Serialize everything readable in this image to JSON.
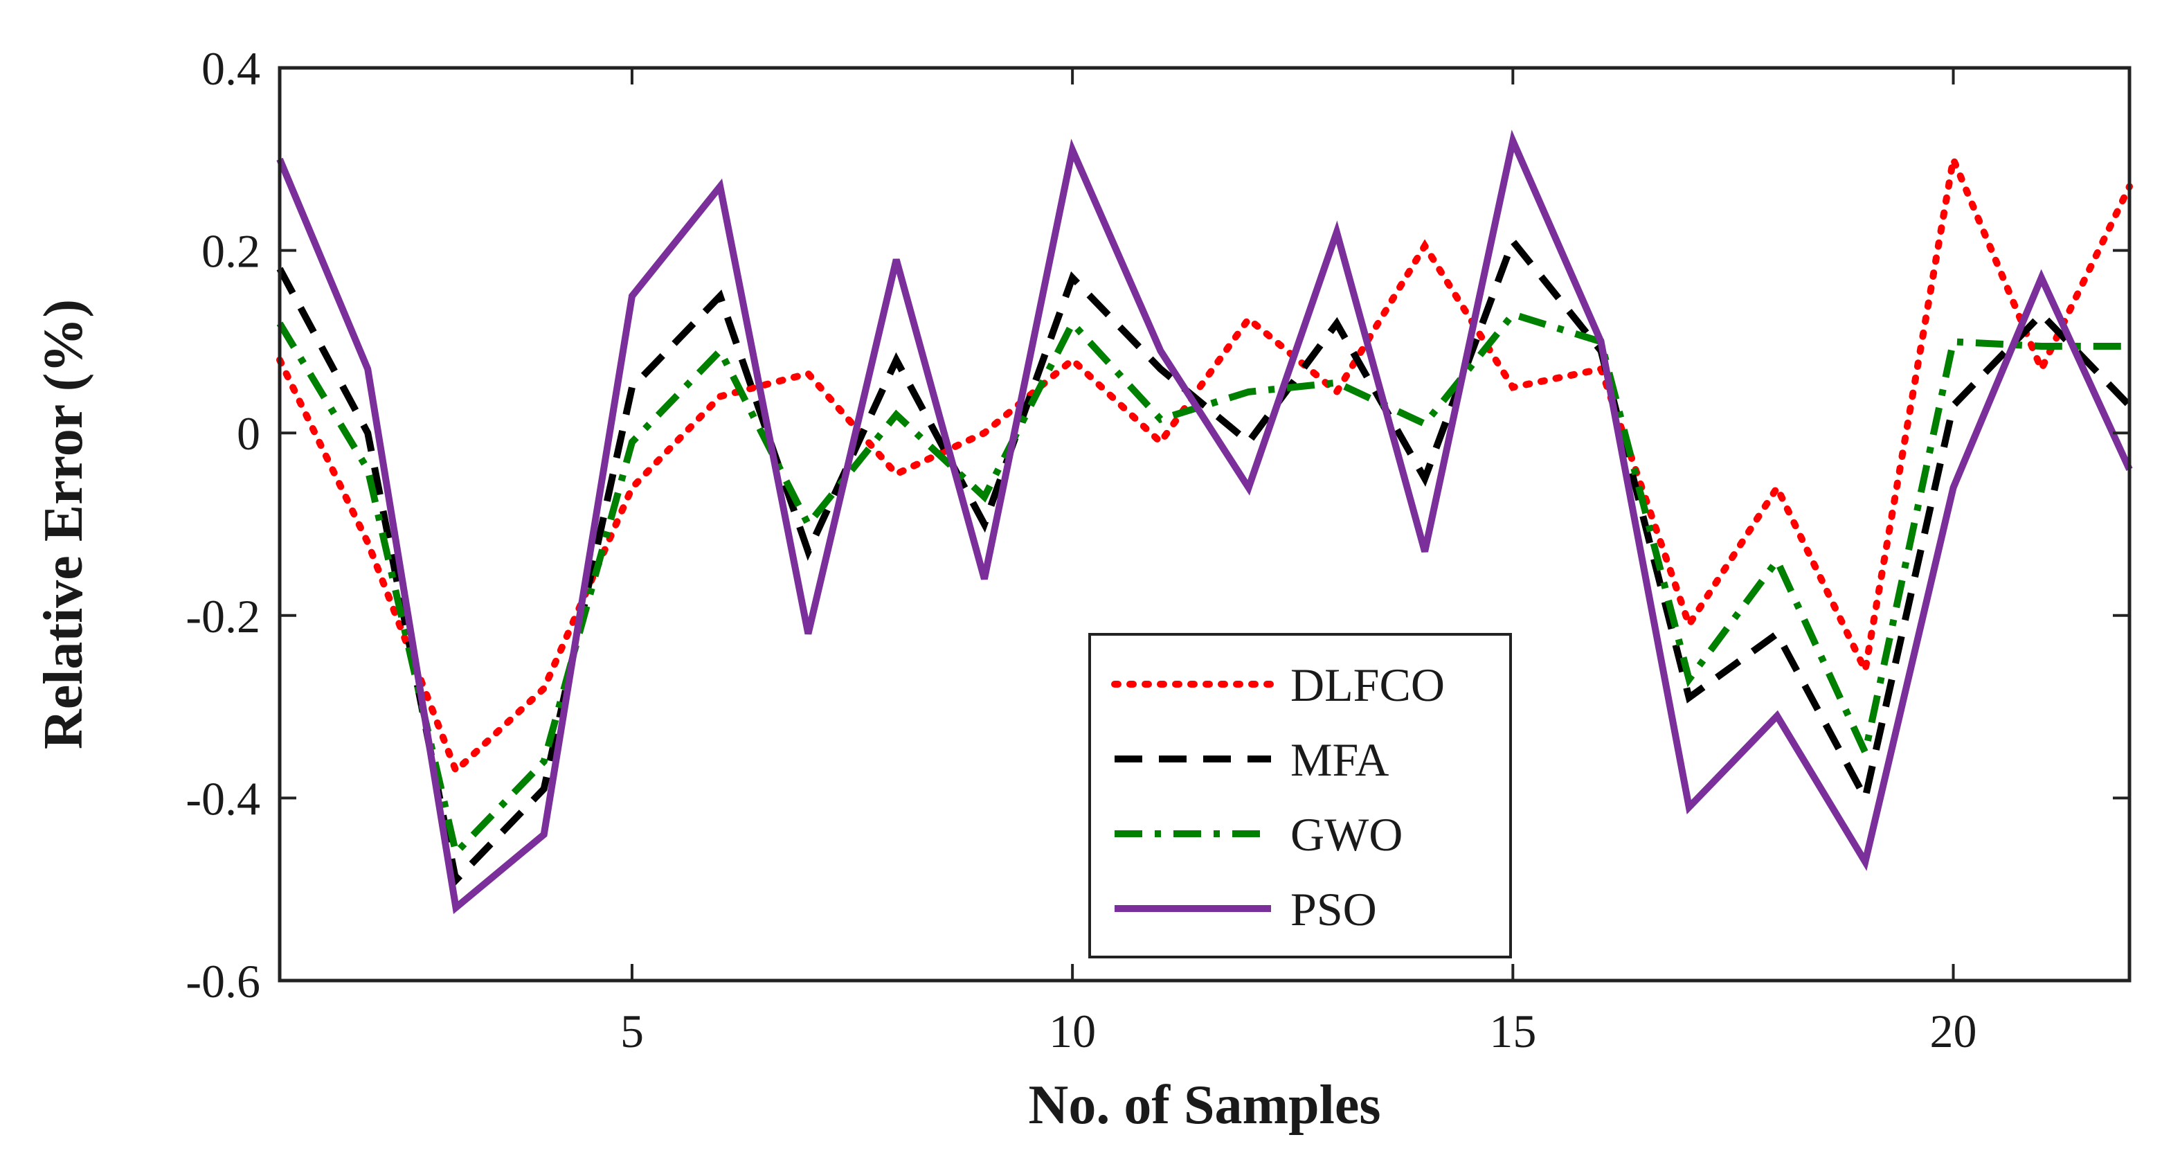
{
  "chart_data": {
    "type": "line",
    "title": "",
    "xlabel": "No. of Samples",
    "ylabel": "Relative Error (%)",
    "xlim": [
      1,
      22
    ],
    "ylim": [
      -0.6,
      0.4
    ],
    "xticks": [
      5,
      10,
      15,
      20
    ],
    "yticks": [
      -0.6,
      -0.4,
      -0.2,
      0,
      0.2,
      0.4
    ],
    "ytick_labels": [
      "-0.6",
      "-0.4",
      "-0.2",
      "0",
      "0.2",
      "0.4"
    ],
    "xtick_labels": [
      "5",
      "10",
      "15",
      "20"
    ],
    "grid": false,
    "legend_position": "bottom-center",
    "x": [
      1,
      2,
      3,
      4,
      5,
      6,
      7,
      8,
      9,
      10,
      11,
      12,
      13,
      14,
      15,
      16,
      17,
      18,
      19,
      20,
      21,
      22
    ],
    "series": [
      {
        "name": "DLFCO",
        "color": "#ff0000",
        "dash": "dotted",
        "values": [
          0.08,
          -0.12,
          -0.37,
          -0.28,
          -0.06,
          0.04,
          0.065,
          -0.045,
          0.0,
          0.08,
          -0.01,
          0.125,
          0.045,
          0.205,
          0.05,
          0.07,
          -0.21,
          -0.06,
          -0.26,
          0.3,
          0.07,
          0.27
        ]
      },
      {
        "name": "MFA",
        "color": "#000000",
        "dash": "dashed",
        "values": [
          0.18,
          0.0,
          -0.49,
          -0.39,
          0.05,
          0.15,
          -0.13,
          0.08,
          -0.1,
          0.17,
          0.07,
          -0.01,
          0.12,
          -0.05,
          0.21,
          0.09,
          -0.29,
          -0.22,
          -0.4,
          0.03,
          0.13,
          0.03
        ]
      },
      {
        "name": "GWO",
        "color": "#008000",
        "dash": "dashdot",
        "values": [
          0.12,
          -0.04,
          -0.46,
          -0.36,
          -0.01,
          0.09,
          -0.1,
          0.02,
          -0.07,
          0.12,
          0.015,
          0.045,
          0.055,
          0.01,
          0.13,
          0.1,
          -0.27,
          -0.14,
          -0.35,
          0.1,
          0.095,
          0.095
        ]
      },
      {
        "name": "PSO",
        "color": "#7a2f9a",
        "dash": "solid",
        "values": [
          0.3,
          0.07,
          -0.52,
          -0.44,
          0.15,
          0.27,
          -0.22,
          0.19,
          -0.16,
          0.31,
          0.09,
          -0.06,
          0.22,
          -0.13,
          0.32,
          0.1,
          -0.41,
          -0.31,
          -0.47,
          -0.06,
          0.17,
          -0.04
        ]
      }
    ]
  }
}
